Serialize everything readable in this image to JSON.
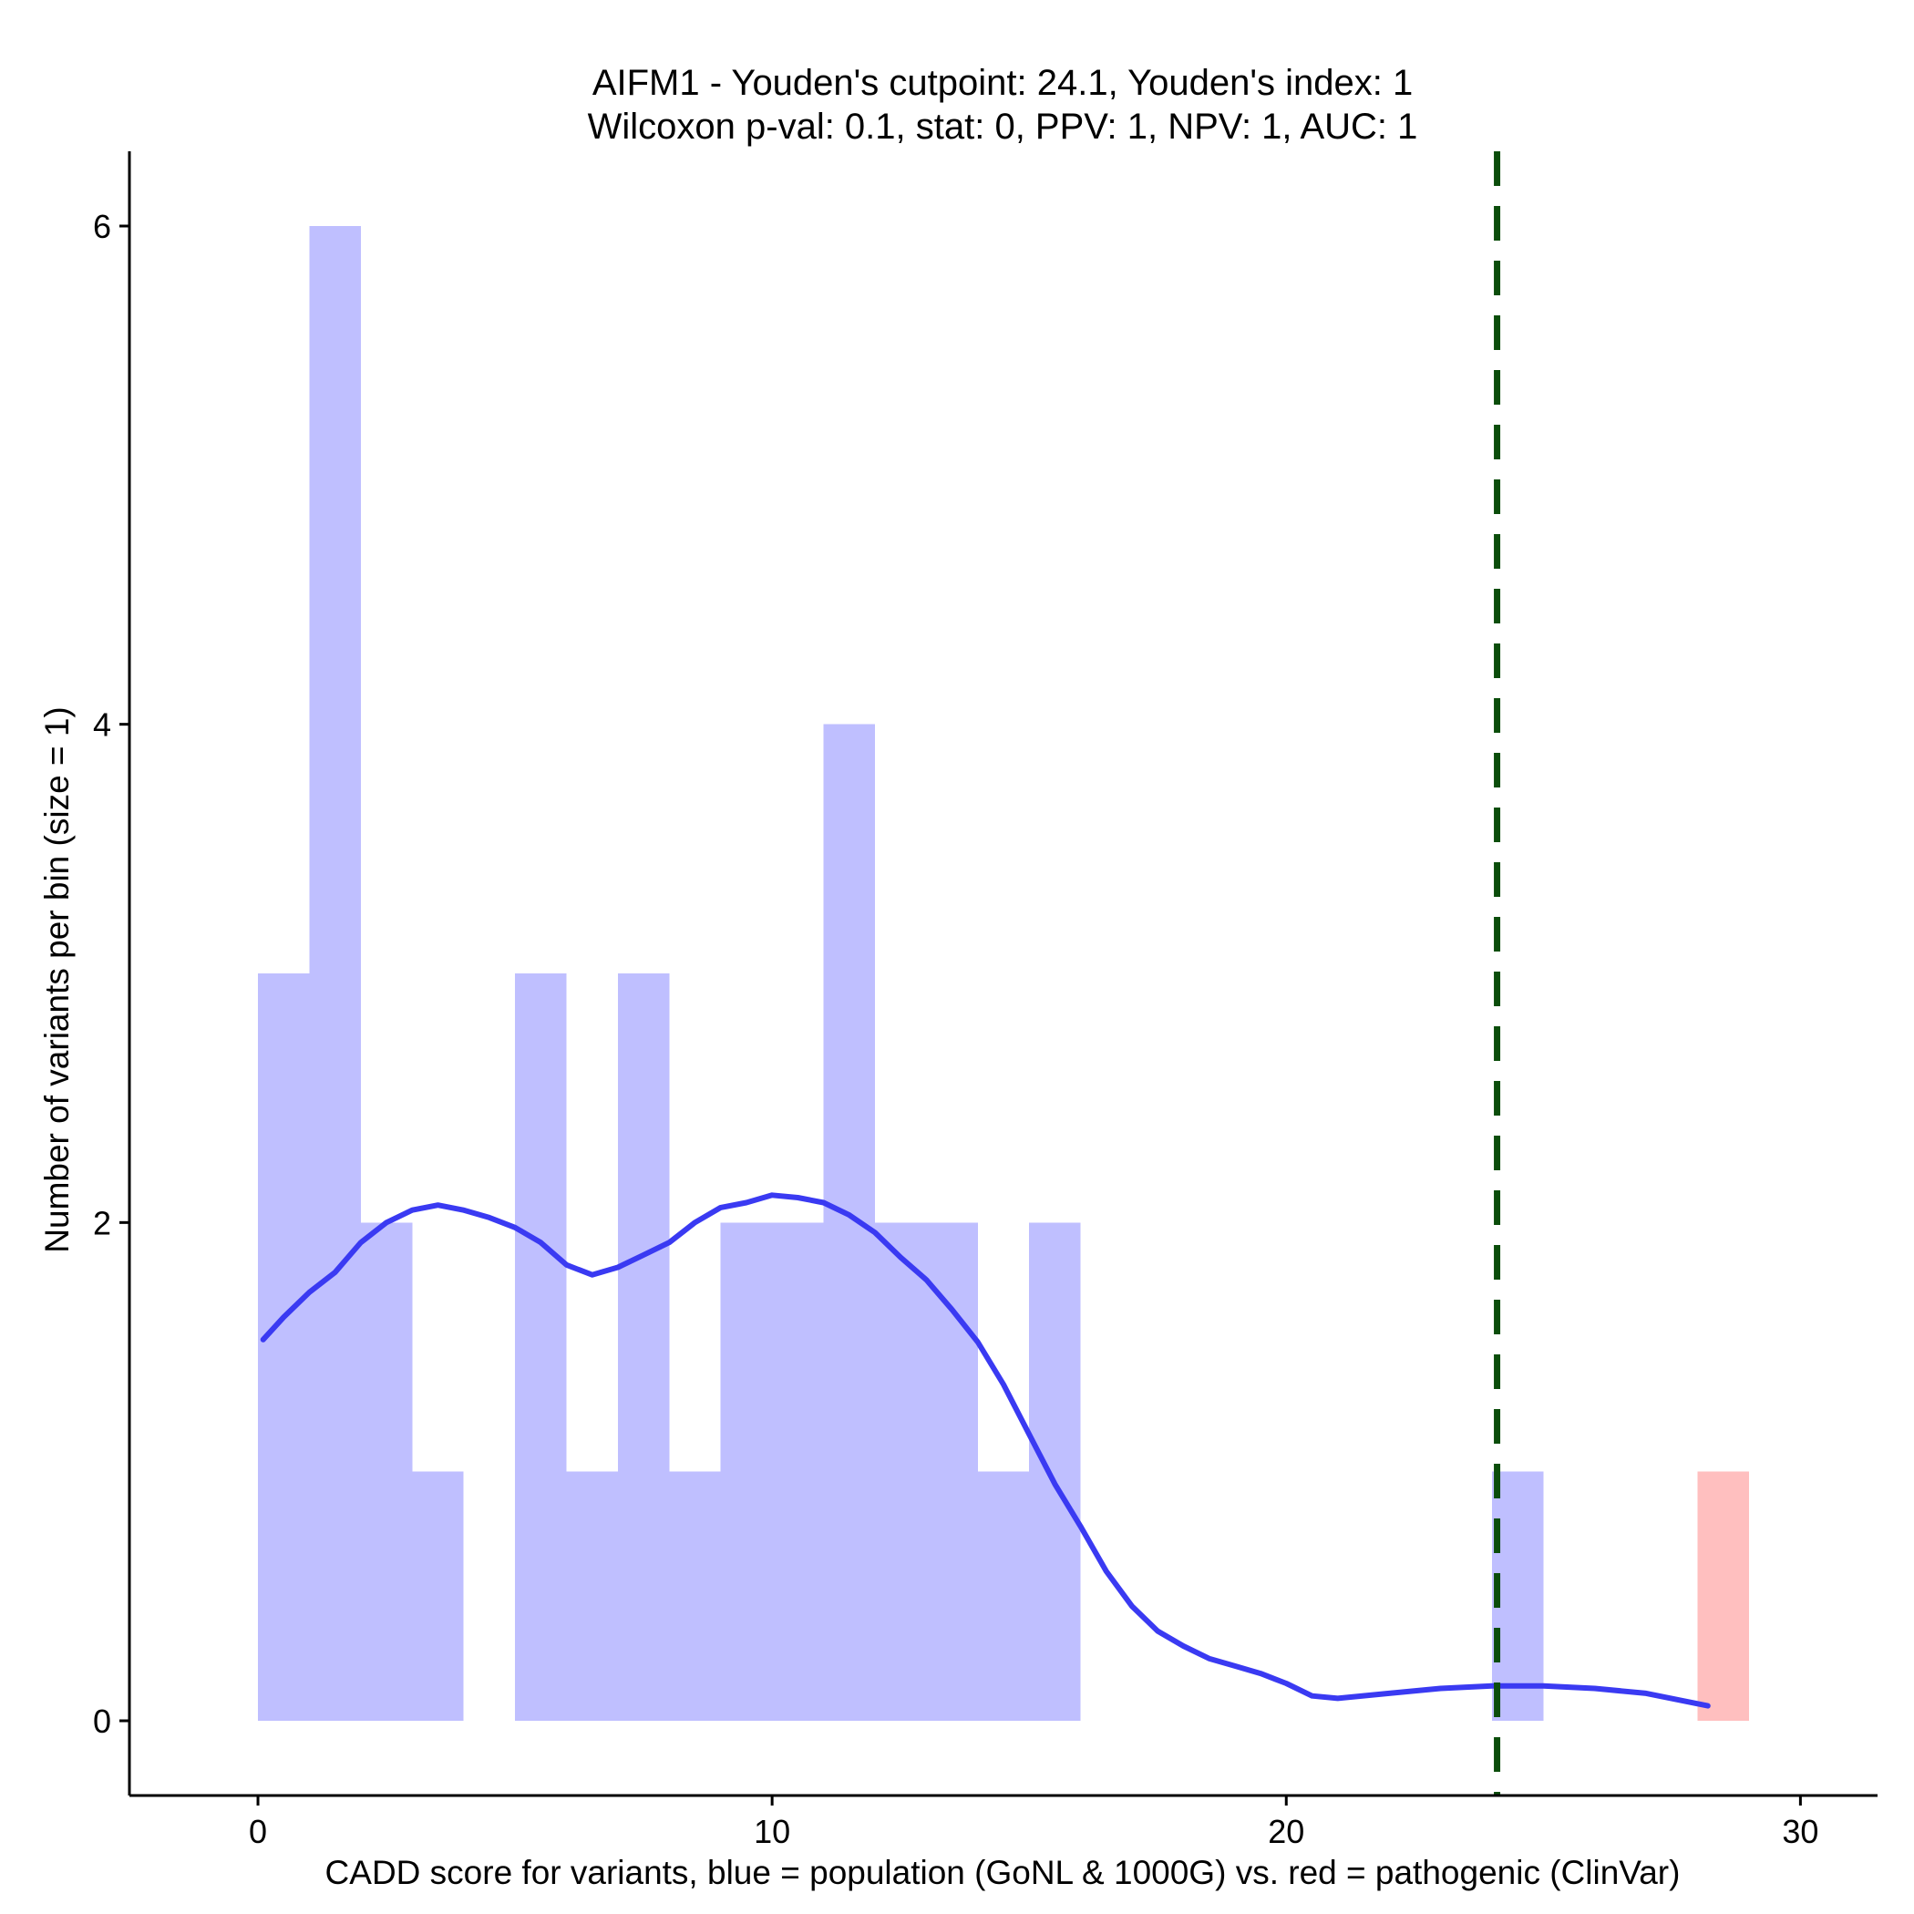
{
  "chart_data": {
    "type": "histogram",
    "title_line1": "AIFM1 - Youden's cutpoint: 24.1, Youden's index: 1",
    "title_line2": "Wilcoxon p-val: 0.1, stat: 0, PPV: 1, NPV: 1, AUC: 1",
    "xlabel": "CADD score for variants, blue = population (GoNL & 1000G) vs. red = pathogenic (ClinVar)",
    "ylabel": "Number of variants per bin (size = 1)",
    "xlim": [
      -2.5,
      31.5
    ],
    "ylim": [
      -0.3,
      6.3
    ],
    "x_ticks": [
      0,
      10,
      20,
      30
    ],
    "y_ticks": [
      0,
      2,
      4,
      6
    ],
    "bin_size": 1,
    "series": [
      {
        "color": "#bfbfff",
        "bins": [
          {
            "x0": 0,
            "x1": 1,
            "count": 3
          },
          {
            "x0": 1,
            "x1": 2,
            "count": 6
          },
          {
            "x0": 2,
            "x1": 3,
            "count": 2
          },
          {
            "x0": 3,
            "x1": 4,
            "count": 1
          },
          {
            "x0": 5,
            "x1": 6,
            "count": 3
          },
          {
            "x0": 6,
            "x1": 7,
            "count": 1
          },
          {
            "x0": 7,
            "x1": 8,
            "count": 3
          },
          {
            "x0": 8,
            "x1": 9,
            "count": 1
          },
          {
            "x0": 9,
            "x1": 10,
            "count": 2
          },
          {
            "x0": 10,
            "x1": 11,
            "count": 2
          },
          {
            "x0": 11,
            "x1": 12,
            "count": 4
          },
          {
            "x0": 12,
            "x1": 13,
            "count": 2
          },
          {
            "x0": 13,
            "x1": 14,
            "count": 2
          },
          {
            "x0": 14,
            "x1": 15,
            "count": 1
          },
          {
            "x0": 15,
            "x1": 16,
            "count": 2
          },
          {
            "x0": 24,
            "x1": 25,
            "count": 1
          }
        ]
      },
      {
        "color": "#ffbfbf",
        "bins": [
          {
            "x0": 28,
            "x1": 29,
            "count": 1
          }
        ]
      }
    ],
    "density_curve": {
      "color": "#3a3af2",
      "points": [
        [
          0.1,
          1.53
        ],
        [
          0.5,
          1.62
        ],
        [
          1.0,
          1.72
        ],
        [
          1.5,
          1.8
        ],
        [
          2.0,
          1.92
        ],
        [
          2.5,
          2.0
        ],
        [
          3.0,
          2.05
        ],
        [
          3.5,
          2.07
        ],
        [
          4.0,
          2.05
        ],
        [
          4.5,
          2.02
        ],
        [
          5.0,
          1.98
        ],
        [
          5.5,
          1.92
        ],
        [
          6.0,
          1.83
        ],
        [
          6.5,
          1.79
        ],
        [
          7.0,
          1.82
        ],
        [
          7.5,
          1.87
        ],
        [
          8.0,
          1.92
        ],
        [
          8.5,
          2.0
        ],
        [
          9.0,
          2.06
        ],
        [
          9.5,
          2.08
        ],
        [
          10.0,
          2.11
        ],
        [
          10.5,
          2.1
        ],
        [
          11.0,
          2.08
        ],
        [
          11.5,
          2.03
        ],
        [
          12.0,
          1.96
        ],
        [
          12.5,
          1.86
        ],
        [
          13.0,
          1.77
        ],
        [
          13.5,
          1.65
        ],
        [
          14.0,
          1.52
        ],
        [
          14.5,
          1.35
        ],
        [
          15.0,
          1.15
        ],
        [
          15.5,
          0.95
        ],
        [
          16.0,
          0.78
        ],
        [
          16.5,
          0.6
        ],
        [
          17.0,
          0.46
        ],
        [
          17.5,
          0.36
        ],
        [
          18.0,
          0.3
        ],
        [
          18.5,
          0.25
        ],
        [
          19.0,
          0.22
        ],
        [
          19.5,
          0.19
        ],
        [
          20.0,
          0.15
        ],
        [
          20.5,
          0.1
        ],
        [
          21.0,
          0.09
        ],
        [
          22.0,
          0.11
        ],
        [
          23.0,
          0.13
        ],
        [
          24.0,
          0.14
        ],
        [
          25.0,
          0.14
        ],
        [
          26.0,
          0.13
        ],
        [
          27.0,
          0.11
        ],
        [
          28.2,
          0.06
        ]
      ]
    },
    "cutpoint_line": {
      "x": 24.1,
      "color": "#0b4d0b",
      "style": "dashed"
    },
    "grid": false,
    "legend": "none"
  }
}
